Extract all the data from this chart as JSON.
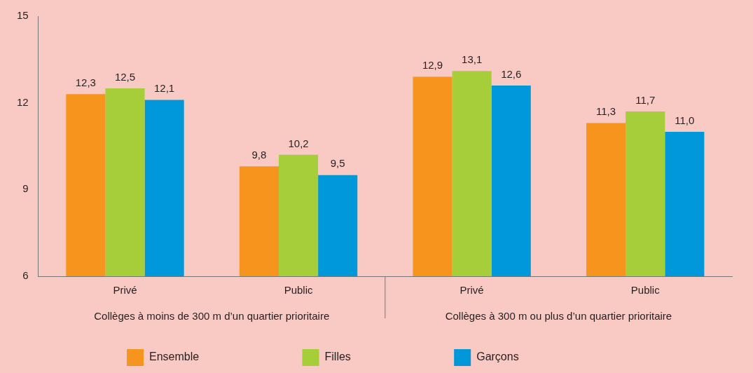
{
  "chart_data": {
    "type": "bar",
    "categories": [
      "Privé",
      "Public",
      "Privé",
      "Public"
    ],
    "series": [
      {
        "name": "Ensemble",
        "color": "#f7941d",
        "values": [
          12.3,
          9.8,
          12.9,
          11.3
        ],
        "value_labels": [
          "12,3",
          "9,8",
          "12,9",
          "11,3"
        ]
      },
      {
        "name": "Filles",
        "color": "#a6ce39",
        "values": [
          12.5,
          10.2,
          13.1,
          11.7
        ],
        "value_labels": [
          "12,5",
          "10,2",
          "13,1",
          "11,7"
        ]
      },
      {
        "name": "Garçons",
        "color": "#0098d8",
        "values": [
          12.1,
          9.5,
          12.6,
          11.0
        ],
        "value_labels": [
          "12,1",
          "9,5",
          "12,6",
          "11,0"
        ]
      }
    ],
    "ylim": [
      6,
      15
    ],
    "yticks": [
      6,
      9,
      12,
      15
    ],
    "grid": false,
    "legend": "bottom",
    "annotations": [
      "Collèges à moins de 300 m d’un quartier prioritaire",
      "Collèges à 300 m ou plus d’un quartier prioritaire"
    ]
  }
}
